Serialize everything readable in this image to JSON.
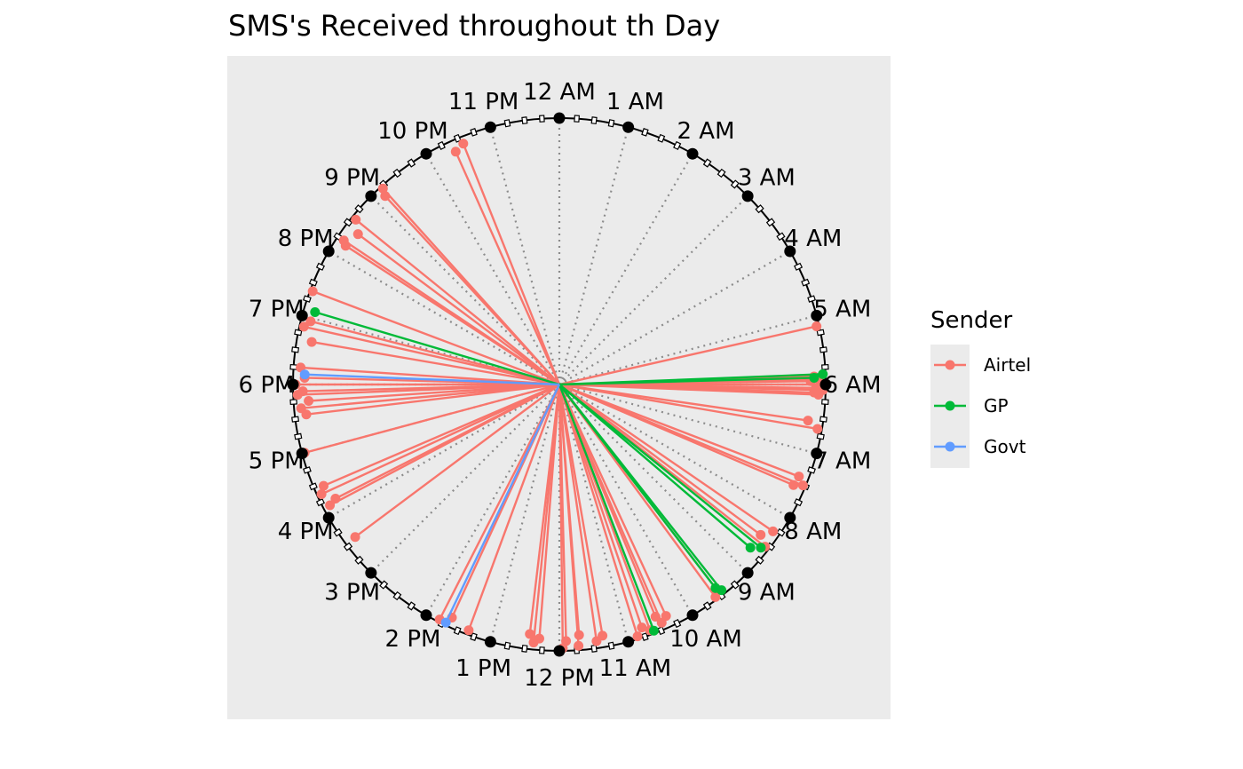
{
  "chart_data": {
    "type": "line",
    "subtype": "polar-clock-spokes",
    "title": "SMS's Received throughout th Day",
    "xlabel": "",
    "ylabel": "",
    "grid": true,
    "legend_placement": "right",
    "legend_title": "Sender",
    "hour_labels": [
      "12 AM",
      "1 AM",
      "2 AM",
      "3 AM",
      "4 AM",
      "5 AM",
      "6 AM",
      "7 AM",
      "8 AM",
      "9 AM",
      "10 AM",
      "11 AM",
      "12 PM",
      "1 PM",
      "2 PM",
      "3 PM",
      "4 PM",
      "5 PM",
      "6 PM",
      "7 PM",
      "8 PM",
      "9 PM",
      "10 PM",
      "11 PM"
    ],
    "series": [
      {
        "name": "Airtel",
        "color": "#F8766D",
        "values": [
          5.15,
          5.88,
          5.92,
          5.95,
          6.0,
          6.05,
          6.08,
          6.12,
          6.15,
          6.55,
          6.65,
          7.4,
          7.5,
          7.55,
          8.3,
          8.45,
          8.55,
          9.5,
          9.58,
          10.35,
          10.45,
          10.5,
          10.65,
          10.75,
          10.85,
          11.35,
          11.45,
          11.7,
          11.72,
          11.9,
          11.95,
          12.3,
          12.38,
          12.45,
          13.35,
          13.65,
          13.8,
          15.55,
          16.15,
          16.2,
          16.35,
          16.45,
          17.0,
          17.55,
          17.65,
          17.75,
          17.85,
          17.9,
          18.0,
          18.1,
          18.25,
          18.65,
          18.85,
          18.95,
          19.38,
          20.2,
          20.25,
          20.45,
          20.6,
          21.15,
          21.2,
          22.4,
          22.55
        ]
      },
      {
        "name": "GP",
        "color": "#00BA38",
        "values": [
          5.85,
          5.9,
          8.6,
          8.7,
          9.45,
          9.5,
          10.6,
          19.1
        ]
      },
      {
        "name": "Govt",
        "color": "#619CFF",
        "values": [
          13.7,
          18.15
        ]
      }
    ]
  },
  "legend": [
    {
      "label": "Airtel",
      "color": "#F8766D"
    },
    {
      "label": "GP",
      "color": "#00BA38"
    },
    {
      "label": "Govt",
      "color": "#619CFF"
    }
  ]
}
